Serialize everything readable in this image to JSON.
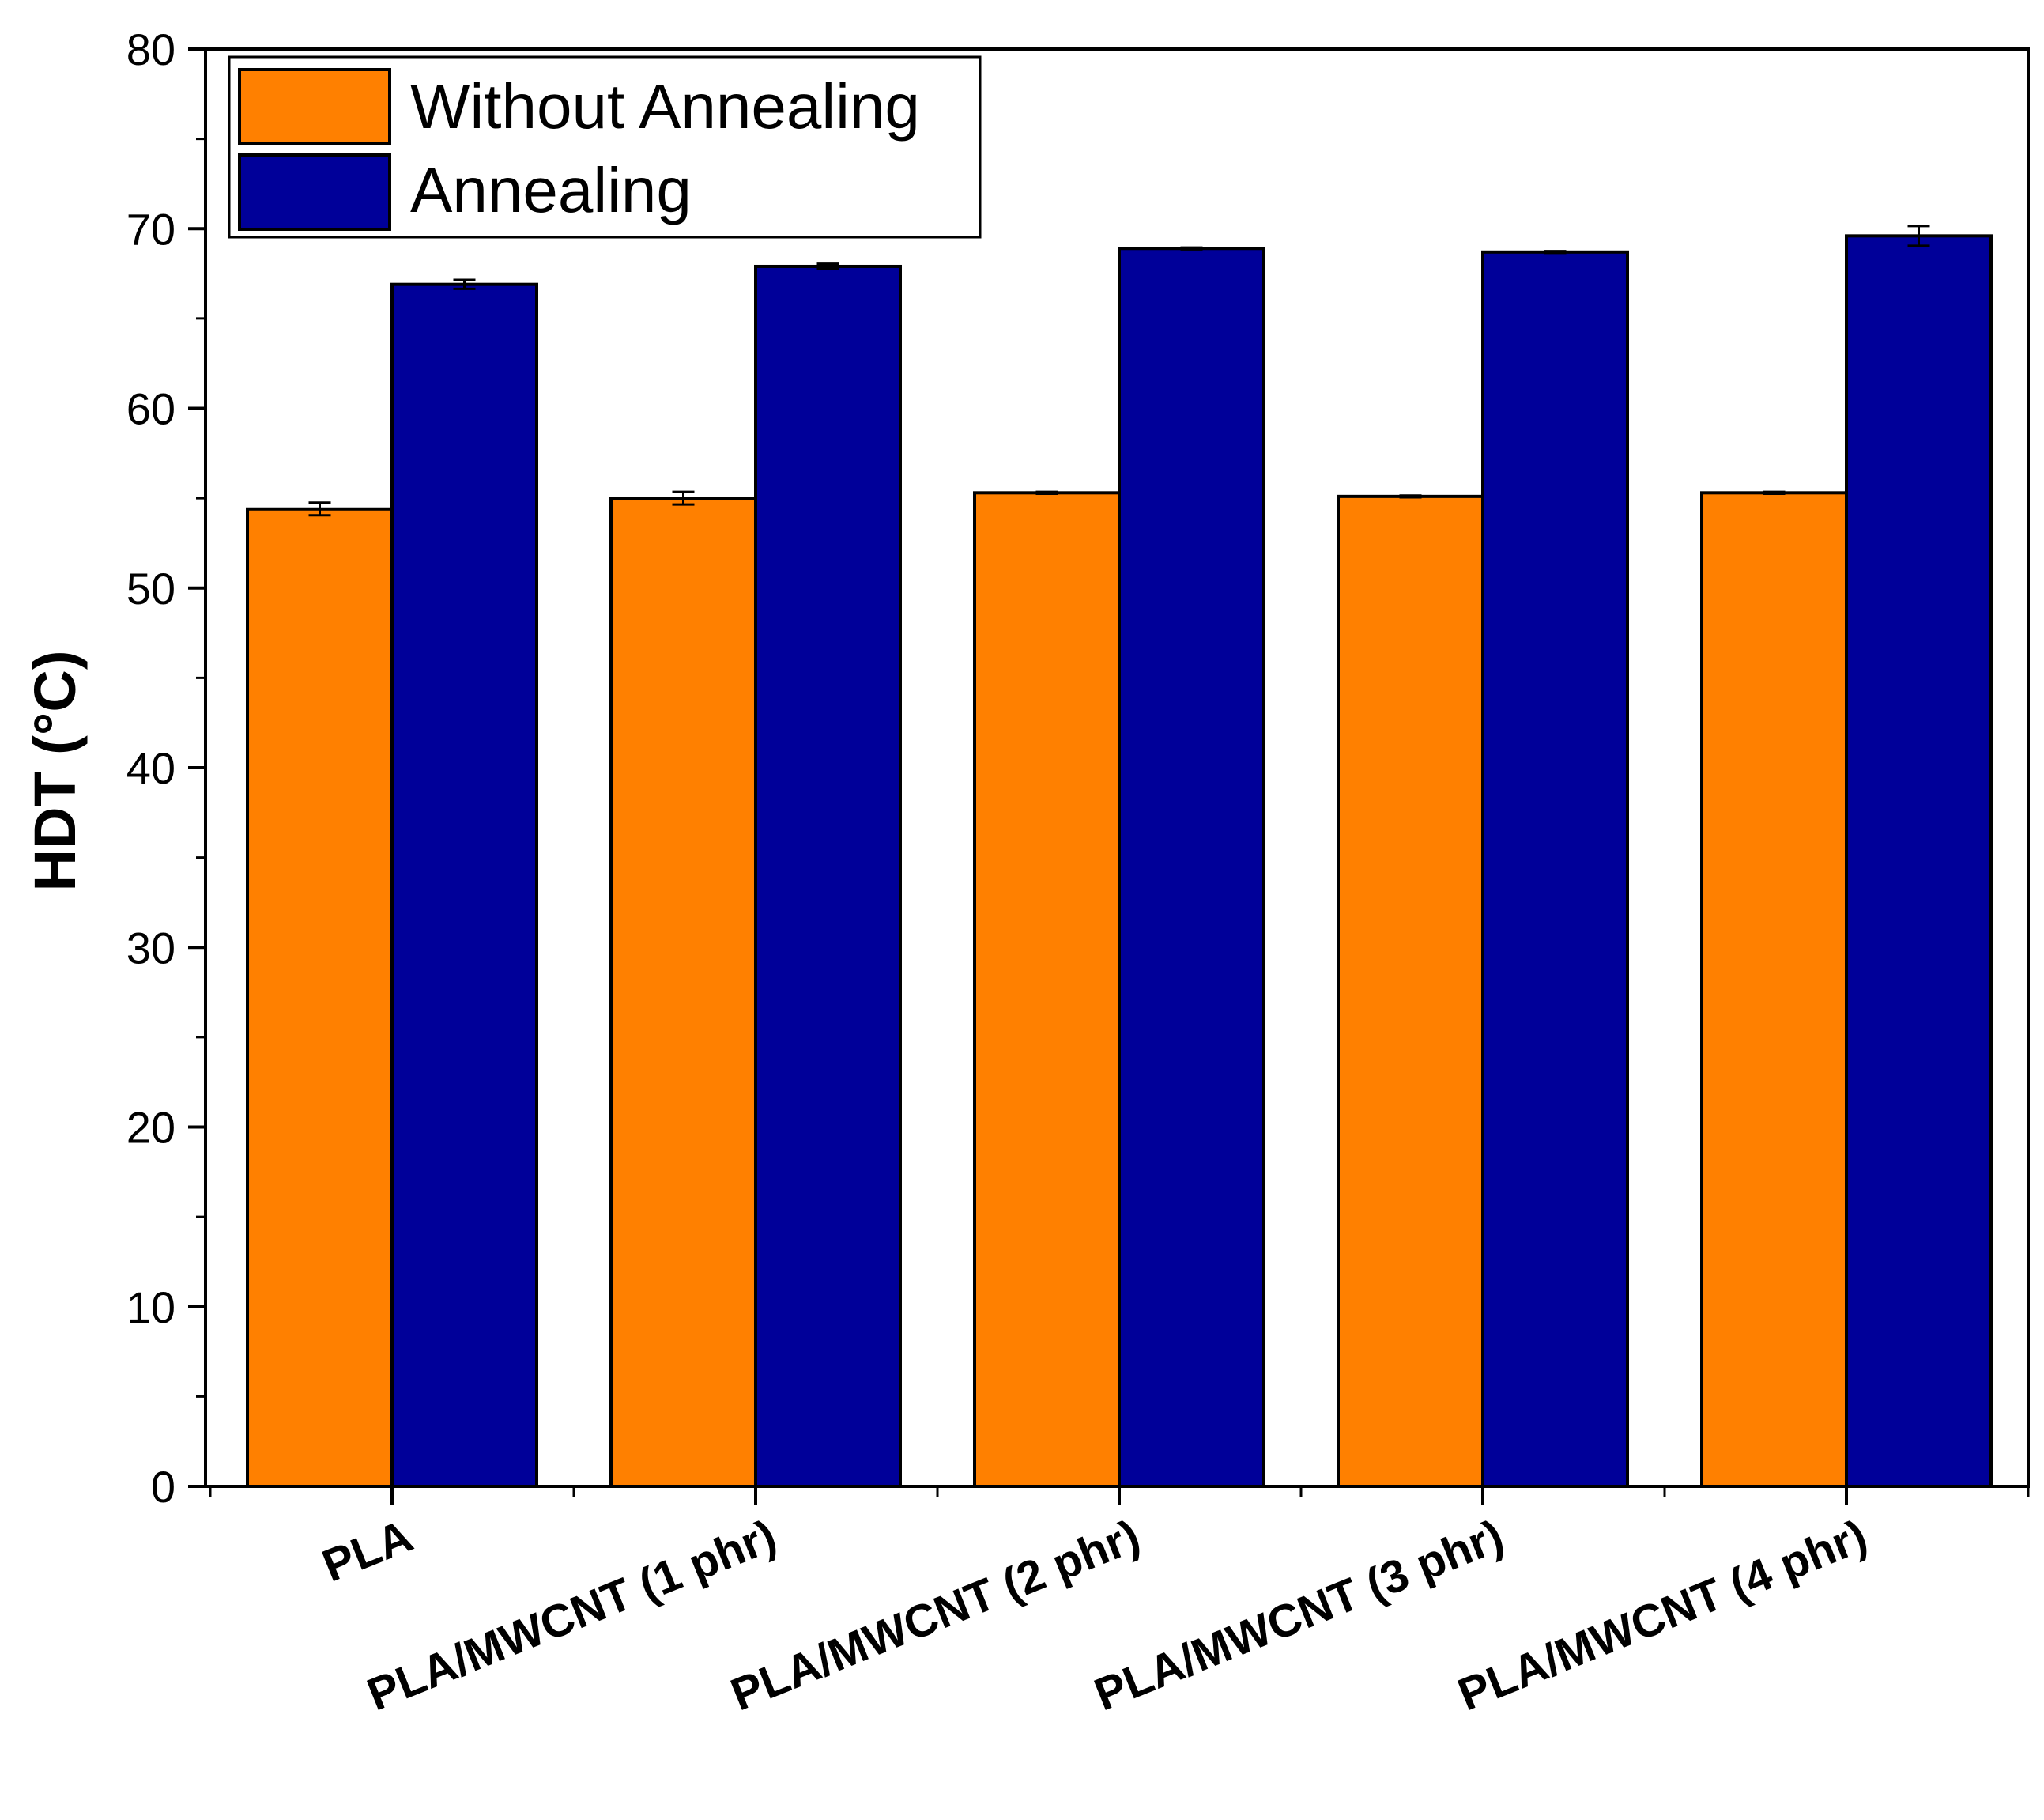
{
  "chart_data": {
    "type": "bar",
    "title": "",
    "xlabel": "",
    "ylabel": "HDT (°C)",
    "ylim": [
      0,
      80
    ],
    "yticks": [
      0,
      10,
      20,
      30,
      40,
      50,
      60,
      70,
      80
    ],
    "categories": [
      "PLA",
      "PLA/MWCNT (1 phr)",
      "PLA/MWCNT (2 phr)",
      "PLA/MWCNT (3 phr)",
      "PLA/MWCNT (4 phr)"
    ],
    "series": [
      {
        "name": "Without Annealing",
        "color": "#ff8000",
        "values": [
          54.4,
          55.0,
          55.3,
          55.1,
          55.3
        ],
        "errors": [
          0.35,
          0.35,
          0.05,
          0.05,
          0.05
        ]
      },
      {
        "name": "Annealing",
        "color": "#000099",
        "values": [
          66.9,
          67.9,
          68.9,
          68.7,
          69.6
        ],
        "errors": [
          0.25,
          0.15,
          0.05,
          0.05,
          0.55
        ]
      }
    ],
    "legend_position": "top-left",
    "grid": false
  }
}
